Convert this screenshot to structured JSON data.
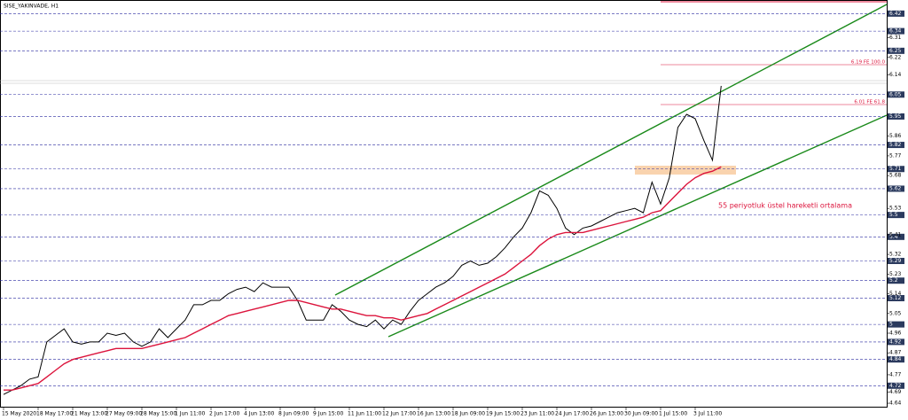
{
  "chart_data": {
    "type": "line",
    "title": "SISE_YAKINVADE, H1",
    "annotation": "55 periyotluk üstel hareketli ortalama",
    "fib_labels": [
      "6.19 FE 100.0",
      "6.01 FE 61.8"
    ],
    "categories": [
      "15 May 2020",
      null,
      null,
      null,
      "18 May 17:00",
      null,
      null,
      null,
      "21 May 13:00",
      null,
      null,
      null,
      "27 May 09:00",
      null,
      null,
      null,
      "28 May 15:00",
      null,
      null,
      null,
      "1 Jun 11:00",
      null,
      null,
      null,
      "2 Jun 17:00",
      null,
      null,
      null,
      "4 Jun 13:00",
      null,
      null,
      null,
      "8 Jun 09:00",
      null,
      null,
      null,
      "9 Jun 15:00",
      null,
      null,
      null,
      "11 Jun 11:00",
      null,
      null,
      null,
      "12 Jun 17:00",
      null,
      null,
      null,
      "16 Jun 13:00",
      null,
      null,
      null,
      "18 Jun 09:00",
      null,
      null,
      null,
      "19 Jun 15:00",
      null,
      null,
      null,
      "23 Jun 11:00",
      null,
      null,
      null,
      "24 Jun 17:00",
      null,
      null,
      null,
      "26 Jun 13:00",
      null,
      null,
      null,
      "30 Jun 09:00",
      null,
      null,
      null,
      "1 Jul 15:00",
      null,
      null,
      null,
      "3 Jul 11:00",
      null,
      null,
      null
    ],
    "series": [
      {
        "name": "SISE_YAKINVADE",
        "color": "#000000",
        "values": [
          4.68,
          4.7,
          4.72,
          4.75,
          4.76,
          4.92,
          4.95,
          4.98,
          4.92,
          4.91,
          4.92,
          4.92,
          4.96,
          4.95,
          4.96,
          4.92,
          4.9,
          4.92,
          4.98,
          4.94,
          4.98,
          5.02,
          5.09,
          5.09,
          5.11,
          5.11,
          5.14,
          5.16,
          5.17,
          5.15,
          5.19,
          5.17,
          5.17,
          5.17,
          5.11,
          5.02,
          5.02,
          5.02,
          5.09,
          5.06,
          5.02,
          5.0,
          4.99,
          5.02,
          4.98,
          5.02,
          5.0,
          5.06,
          5.11,
          5.14,
          5.17,
          5.19,
          5.22,
          5.27,
          5.29,
          5.27,
          5.28,
          5.31,
          5.35,
          5.4,
          5.44,
          5.51,
          5.61,
          5.59,
          5.53,
          5.44,
          5.41,
          5.44,
          5.45,
          5.47,
          5.49,
          5.51,
          5.52,
          5.53,
          5.51,
          5.65,
          5.55,
          5.67,
          5.9,
          5.96,
          5.94,
          5.84,
          5.75,
          6.09
        ]
      },
      {
        "name": "EMA 55",
        "color": "#dc143c",
        "values": [
          4.7,
          4.7,
          4.71,
          4.72,
          4.73,
          4.76,
          4.79,
          4.82,
          4.84,
          4.85,
          4.86,
          4.87,
          4.88,
          4.89,
          4.89,
          4.89,
          4.89,
          4.9,
          4.91,
          4.92,
          4.93,
          4.94,
          4.96,
          4.98,
          5.0,
          5.02,
          5.04,
          5.05,
          5.06,
          5.07,
          5.08,
          5.09,
          5.1,
          5.11,
          5.11,
          5.1,
          5.09,
          5.08,
          5.07,
          5.07,
          5.06,
          5.05,
          5.04,
          5.04,
          5.03,
          5.03,
          5.02,
          5.03,
          5.04,
          5.05,
          5.07,
          5.09,
          5.11,
          5.13,
          5.15,
          5.17,
          5.19,
          5.21,
          5.23,
          5.26,
          5.29,
          5.32,
          5.36,
          5.39,
          5.41,
          5.42,
          5.42,
          5.42,
          5.43,
          5.44,
          5.45,
          5.46,
          5.47,
          5.48,
          5.49,
          5.51,
          5.52,
          5.56,
          5.6,
          5.64,
          5.67,
          5.69,
          5.7,
          5.72
        ]
      }
    ],
    "ylim": [
      4.62,
      6.47
    ],
    "yticks": [
      4.64,
      4.69,
      4.72,
      4.77,
      4.84,
      4.87,
      4.92,
      4.96,
      5.0,
      5.05,
      5.12,
      5.14,
      5.2,
      5.23,
      5.29,
      5.32,
      5.4,
      5.41,
      5.5,
      5.53,
      5.62,
      5.68,
      5.71,
      5.77,
      5.82,
      5.86,
      5.95,
      6.05,
      6.14,
      6.22,
      6.25,
      6.31,
      6.34,
      6.42
    ],
    "levels": [
      4.72,
      4.84,
      4.92,
      5.0,
      5.12,
      5.2,
      5.29,
      5.4,
      5.5,
      5.62,
      5.71,
      5.82,
      5.95,
      6.05,
      6.25,
      6.34,
      6.42
    ]
  }
}
